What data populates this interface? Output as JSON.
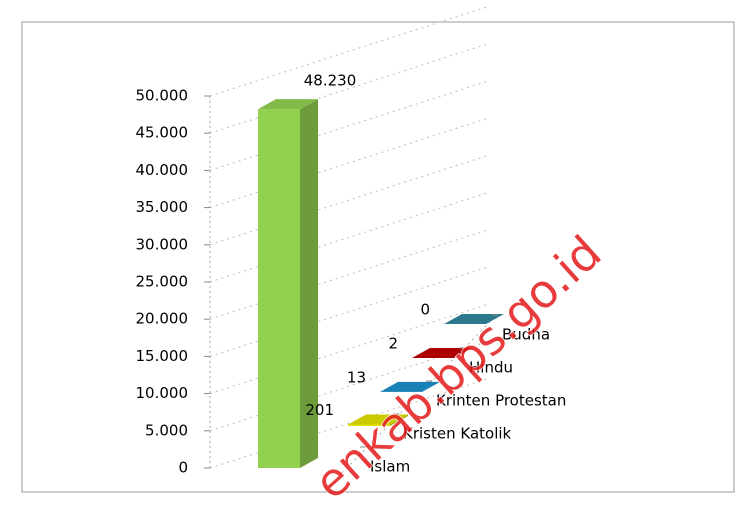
{
  "chart_data": {
    "type": "bar3d",
    "categories": [
      "Islam",
      "Kristen Katolik",
      "Krinten Protestan",
      "Hindu",
      "Budha"
    ],
    "values": [
      48230,
      201,
      13,
      2,
      0
    ],
    "value_labels": [
      "48.230",
      "201",
      "13",
      "2",
      "0"
    ],
    "colors": [
      "#92d050",
      "#e2e000",
      "#1d8fca",
      "#c00000",
      "#31859c"
    ],
    "ylim": [
      0,
      50000
    ],
    "yticks": [
      0,
      {
        "value": 5000,
        "label": "5.000"
      },
      {
        "value": 10000,
        "label": "10.000"
      },
      {
        "value": 15000,
        "label": "15.000"
      },
      {
        "value": 20000,
        "label": "20.000"
      },
      {
        "value": 25000,
        "label": "25.000"
      },
      {
        "value": 30000,
        "label": "30.000"
      },
      {
        "value": 35000,
        "label": "35.000"
      },
      {
        "value": 40000,
        "label": "40.000"
      },
      {
        "value": 45000,
        "label": "45.000"
      },
      {
        "value": 50000,
        "label": "50.000"
      }
    ],
    "grid": true,
    "watermark": "enkab.bps.go.id"
  }
}
